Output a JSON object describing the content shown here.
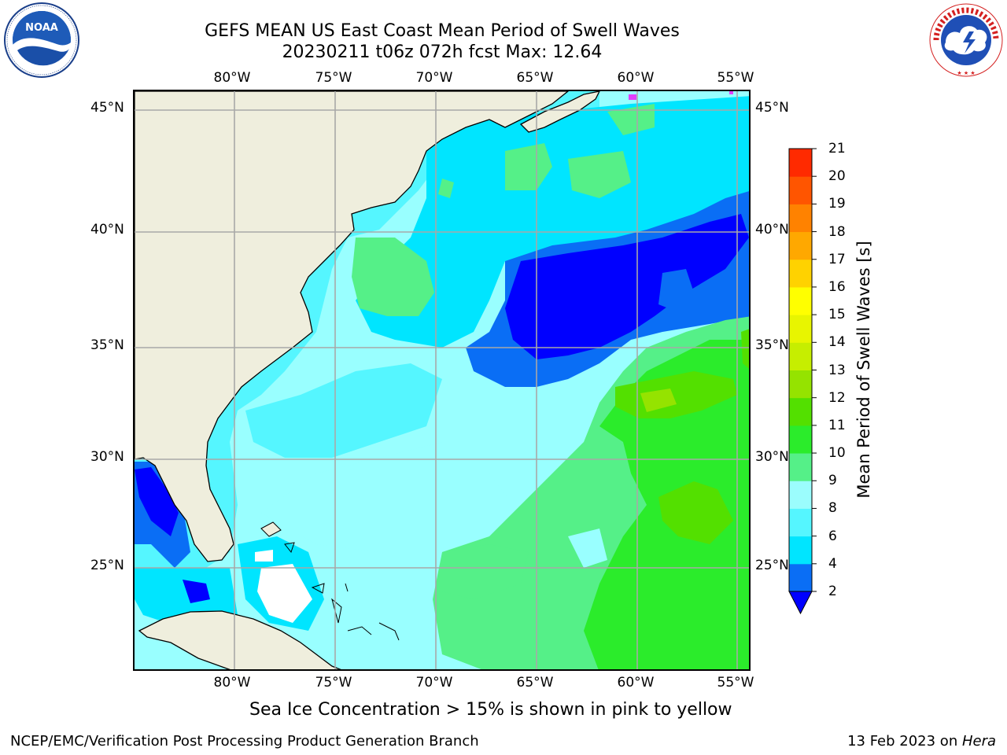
{
  "title": {
    "line1": "GEFS MEAN US East Coast Mean Period of Swell Waves",
    "line2": "20230211 t06z 072h fcst   Max: 12.64"
  },
  "map": {
    "longitude_labels": [
      "80°W",
      "75°W",
      "70°W",
      "65°W",
      "60°W",
      "55°W"
    ],
    "latitude_labels": [
      "45°N",
      "40°N",
      "35°N",
      "30°N",
      "25°N"
    ]
  },
  "colorbar": {
    "label": "Mean Period of Swell Waves [s]",
    "ticks": [
      "2",
      "4",
      "6",
      "8",
      "9",
      "10",
      "11",
      "12",
      "13",
      "14",
      "15",
      "16",
      "17",
      "18",
      "19",
      "20",
      "21"
    ],
    "colors": [
      "#0a6ef5",
      "#00e5ff",
      "#55f6ff",
      "#9bfdfd",
      "#55f088",
      "#2bec2b",
      "#53e000",
      "#95e300",
      "#c6ee00",
      "#e8f500",
      "#ffff00",
      "#ffd200",
      "#ffa800",
      "#ff8200",
      "#ff5500",
      "#ff2a00",
      "#ff0000"
    ],
    "extend_color": "#0000ff"
  },
  "notes": {
    "sea_ice": "Sea Ice Concentration > 15% is shown in pink to yellow",
    "credit": "NCEP/EMC/Verification Post Processing Product Generation Branch",
    "date": "13 Feb 2023 on ",
    "host": "Hera"
  },
  "logos": {
    "noaa": "NOAA",
    "nws": "NATIONAL WEATHER SERVICE"
  }
}
